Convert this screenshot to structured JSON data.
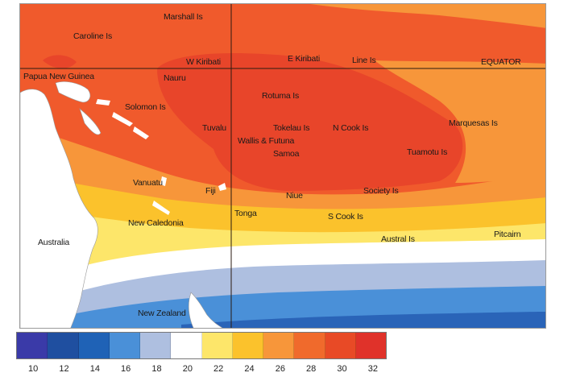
{
  "labels": [
    {
      "id": "marshall",
      "text": "Marshall Is"
    },
    {
      "id": "caroline",
      "text": "Caroline Is"
    },
    {
      "id": "wkiribati",
      "text": "W Kiribati"
    },
    {
      "id": "ekiribati",
      "text": "E Kiribati"
    },
    {
      "id": "line",
      "text": "Line Is"
    },
    {
      "id": "equator",
      "text": "EQUATOR"
    },
    {
      "id": "png",
      "text": "Papua New Guinea"
    },
    {
      "id": "nauru",
      "text": "Nauru"
    },
    {
      "id": "rotuma",
      "text": "Rotuma Is"
    },
    {
      "id": "solomon",
      "text": "Solomon Is"
    },
    {
      "id": "tuvalu",
      "text": "Tuvalu"
    },
    {
      "id": "tokelau",
      "text": "Tokelau Is"
    },
    {
      "id": "ncook",
      "text": "N Cook Is"
    },
    {
      "id": "marquesas",
      "text": "Marquesas Is"
    },
    {
      "id": "wallis",
      "text": "Wallis & Futuna"
    },
    {
      "id": "samoa",
      "text": "Samoa"
    },
    {
      "id": "tuamotu",
      "text": "Tuamotu Is"
    },
    {
      "id": "vanuatu",
      "text": "Vanuatu"
    },
    {
      "id": "fiji",
      "text": "Fiji"
    },
    {
      "id": "niue",
      "text": "Niue"
    },
    {
      "id": "society",
      "text": "Society Is"
    },
    {
      "id": "tonga",
      "text": "Tonga"
    },
    {
      "id": "scook",
      "text": "S Cook Is"
    },
    {
      "id": "newcal",
      "text": "New Caledonia"
    },
    {
      "id": "austral",
      "text": "Austral Is"
    },
    {
      "id": "pitcairn",
      "text": "Pitcairn"
    },
    {
      "id": "australia",
      "text": "Australia"
    },
    {
      "id": "nz",
      "text": "New Zealand"
    }
  ],
  "legend": {
    "colors": [
      "#3a3aa8",
      "#1f4fa0",
      "#1f62b6",
      "#4a90d8",
      "#aebfe0",
      "#ffffff",
      "#fde66a",
      "#fbc22c",
      "#f7963a",
      "#f06a2c",
      "#e84a26",
      "#e0322a"
    ],
    "ticks": [
      "10",
      "12",
      "14",
      "16",
      "18",
      "20",
      "22",
      "24",
      "26",
      "28",
      "30",
      "32"
    ]
  },
  "colors": {
    "ocean_very_warm": "#e8452a",
    "ocean_warm": "#f05a2c",
    "ocean_orange": "#f7963a",
    "ocean_yellow_orange": "#fbc22c",
    "ocean_yellow": "#fde66a",
    "ocean_white": "#ffffff",
    "ocean_light_blue": "#aebfe0",
    "ocean_blue": "#4a90d8",
    "ocean_dark_blue": "#2a64b8",
    "land": "#ffffff"
  }
}
